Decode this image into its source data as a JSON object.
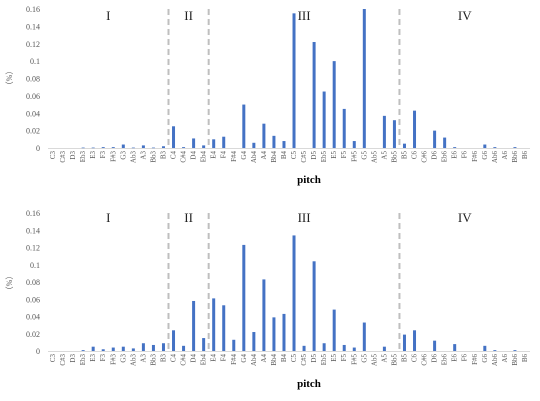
{
  "chart_data": [
    {
      "type": "bar",
      "xlabel": "pitch",
      "ylabel": "（%）",
      "ylim": [
        0,
        0.16
      ],
      "yticks": [
        "0",
        "0.02",
        "0.04",
        "0.06",
        "0.08",
        "0.1",
        "0.12",
        "0.14",
        "0.16"
      ],
      "bar_color": "#4472c4",
      "separator_color": "#bfbfbf",
      "grid": false,
      "regions": [
        "I",
        "II",
        "III",
        "IV"
      ],
      "region_boundaries_after": [
        "B3",
        "Eb4",
        "Bb5"
      ],
      "categories": [
        "C3",
        "C#3",
        "D3",
        "Eb3",
        "E3",
        "F3",
        "F#3",
        "G3",
        "Ab3",
        "A3",
        "Bb3",
        "B3",
        "C4",
        "C#4",
        "D4",
        "Eb4",
        "E4",
        "F4",
        "F#4",
        "G4",
        "Ab4",
        "A4",
        "Bb4",
        "B4",
        "C5",
        "C#5",
        "D5",
        "Eb5",
        "E5",
        "F5",
        "F#5",
        "G5",
        "Ab5",
        "A5",
        "Bb5",
        "B5",
        "C6",
        "C#6",
        "D6",
        "Eb6",
        "E6",
        "F6",
        "F#6",
        "G6",
        "Ab6",
        "A6",
        "Bb6",
        "B6"
      ],
      "values": [
        0,
        0,
        0,
        0.0005,
        0.0005,
        0.001,
        0.001,
        0.004,
        0.0005,
        0.003,
        0.0005,
        0.002,
        0.025,
        0.001,
        0.011,
        0.003,
        0.01,
        0.013,
        0,
        0.05,
        0.006,
        0.028,
        0.014,
        0.008,
        0.155,
        0,
        0.122,
        0.065,
        0.1,
        0.045,
        0.008,
        0.16,
        0,
        0.037,
        0.032,
        0.005,
        0.043,
        0,
        0.02,
        0.012,
        0.001,
        0,
        0,
        0.004,
        0.001,
        0,
        0.001,
        0
      ]
    },
    {
      "type": "bar",
      "xlabel": "pitch",
      "ylabel": "（%）",
      "ylim": [
        0,
        0.16
      ],
      "yticks": [
        "0",
        "0.02",
        "0.04",
        "0.06",
        "0.08",
        "0.1",
        "0.12",
        "0.14",
        "0.16"
      ],
      "bar_color": "#4472c4",
      "separator_color": "#bfbfbf",
      "grid": false,
      "regions": [
        "I",
        "II",
        "III",
        "IV"
      ],
      "region_boundaries_after": [
        "B3",
        "Eb4",
        "Bb5"
      ],
      "categories": [
        "C3",
        "C#3",
        "D3",
        "Eb3",
        "E3",
        "F3",
        "F#3",
        "G3",
        "Ab3",
        "A3",
        "Bb3",
        "B3",
        "C4",
        "C#4",
        "D4",
        "Eb4",
        "E4",
        "F4",
        "F#4",
        "G4",
        "Ab4",
        "A4",
        "Bb4",
        "B4",
        "C5",
        "C#5",
        "D5",
        "Eb5",
        "E5",
        "F5",
        "F#5",
        "G5",
        "Ab5",
        "A5",
        "Bb5",
        "B5",
        "C6",
        "C#6",
        "D6",
        "Eb6",
        "E6",
        "F6",
        "F#6",
        "G6",
        "Ab6",
        "A6",
        "Bb6",
        "B6"
      ],
      "values": [
        0,
        0,
        0,
        0.001,
        0.005,
        0.002,
        0.004,
        0.005,
        0.003,
        0.009,
        0.007,
        0.009,
        0.024,
        0.006,
        0.058,
        0.015,
        0.061,
        0.053,
        0.013,
        0.123,
        0.022,
        0.083,
        0.039,
        0.043,
        0.134,
        0.006,
        0.104,
        0.009,
        0.048,
        0.007,
        0.004,
        0.033,
        0,
        0.005,
        0,
        0.019,
        0.024,
        0,
        0.012,
        0,
        0.008,
        0,
        0,
        0.006,
        0.001,
        0,
        0.001,
        0
      ]
    }
  ]
}
